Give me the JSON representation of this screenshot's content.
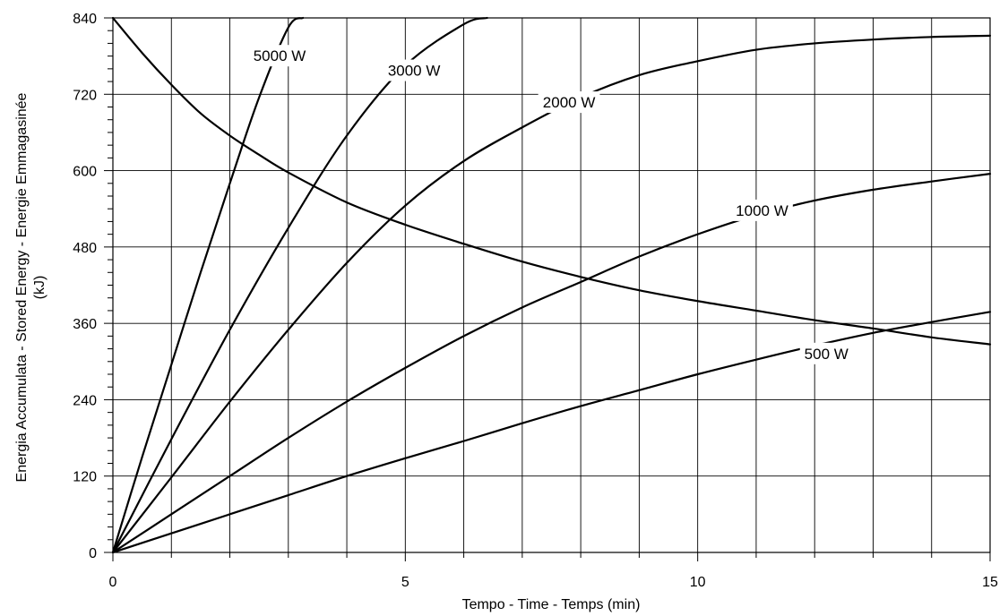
{
  "chart_data": {
    "type": "line",
    "title": "",
    "xlabel": "Tempo - Time - Temps   (min)",
    "ylabel_line1": "Energia Accumulata - Stored Energy - Energie Emmagasinée",
    "ylabel_line2": "(kJ)",
    "xlim": [
      0,
      15
    ],
    "ylim": [
      0,
      840
    ],
    "x_ticks": [
      0,
      5,
      10,
      15
    ],
    "y_ticks": [
      0,
      120,
      240,
      360,
      480,
      600,
      720,
      840
    ],
    "grid": true,
    "x_minor_step": 1,
    "y_major_step": 120,
    "y_minor_step": 20,
    "series": [
      {
        "name": "5000 W",
        "x": [
          0,
          0.5,
          1,
          1.5,
          2,
          2.5,
          3,
          3.25
        ],
        "y": [
          0,
          150,
          295,
          440,
          580,
          715,
          825,
          840
        ]
      },
      {
        "name": "3000 W",
        "x": [
          0,
          1,
          2,
          3,
          4,
          5,
          6,
          6.4
        ],
        "y": [
          0,
          178,
          350,
          510,
          655,
          765,
          830,
          840
        ]
      },
      {
        "name": "2000 W",
        "x": [
          0,
          1,
          2,
          3,
          4,
          5,
          6,
          7,
          8,
          9,
          10,
          11,
          12,
          13,
          14,
          15
        ],
        "y": [
          0,
          118,
          237,
          350,
          455,
          545,
          615,
          668,
          715,
          750,
          772,
          790,
          800,
          806,
          810,
          812
        ]
      },
      {
        "name": "1000 W",
        "x": [
          0,
          1,
          2,
          3,
          4,
          5,
          6,
          7,
          8,
          9,
          10,
          11,
          12,
          13,
          14,
          15
        ],
        "y": [
          0,
          60,
          120,
          180,
          237,
          290,
          340,
          385,
          425,
          465,
          500,
          530,
          553,
          570,
          583,
          595
        ]
      },
      {
        "name": "500 W",
        "x": [
          0,
          1,
          2,
          3,
          4,
          5,
          6,
          7,
          8,
          9,
          10,
          11,
          12,
          13,
          14,
          15
        ],
        "y": [
          0,
          30,
          60,
          90,
          120,
          148,
          175,
          203,
          230,
          255,
          280,
          303,
          325,
          345,
          362,
          378
        ]
      },
      {
        "name": "",
        "x": [
          0,
          0.5,
          1,
          1.5,
          2,
          2.5,
          3,
          4,
          5,
          6,
          7,
          8,
          9,
          10,
          11,
          12,
          13,
          14,
          15
        ],
        "y": [
          840,
          785,
          735,
          690,
          655,
          625,
          597,
          550,
          515,
          485,
          457,
          433,
          412,
          395,
          380,
          365,
          352,
          338,
          327
        ]
      }
    ],
    "labels": [
      {
        "text": "5000 W",
        "x": 2.85,
        "y": 775
      },
      {
        "text": "3000 W",
        "x": 5.15,
        "y": 752
      },
      {
        "text": "2000 W",
        "x": 7.8,
        "y": 702
      },
      {
        "text": "1000 W",
        "x": 11.1,
        "y": 532
      },
      {
        "text": "500 W",
        "x": 12.2,
        "y": 307
      }
    ]
  }
}
